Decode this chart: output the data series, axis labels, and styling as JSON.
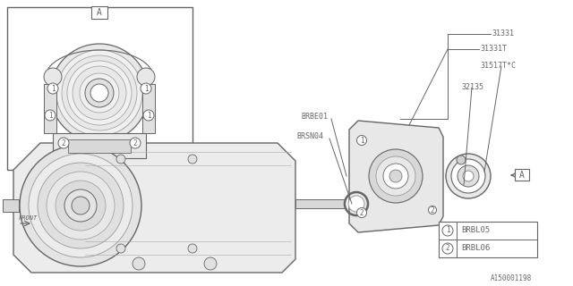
{
  "bg_color": "#ffffff",
  "line_color": "#aaaaaa",
  "dark_line": "#666666",
  "med_line": "#999999",
  "title_doc": "A150001198",
  "legend_items": [
    {
      "num": "1",
      "code": "BRBL05"
    },
    {
      "num": "2",
      "code": "BRBL06"
    }
  ]
}
